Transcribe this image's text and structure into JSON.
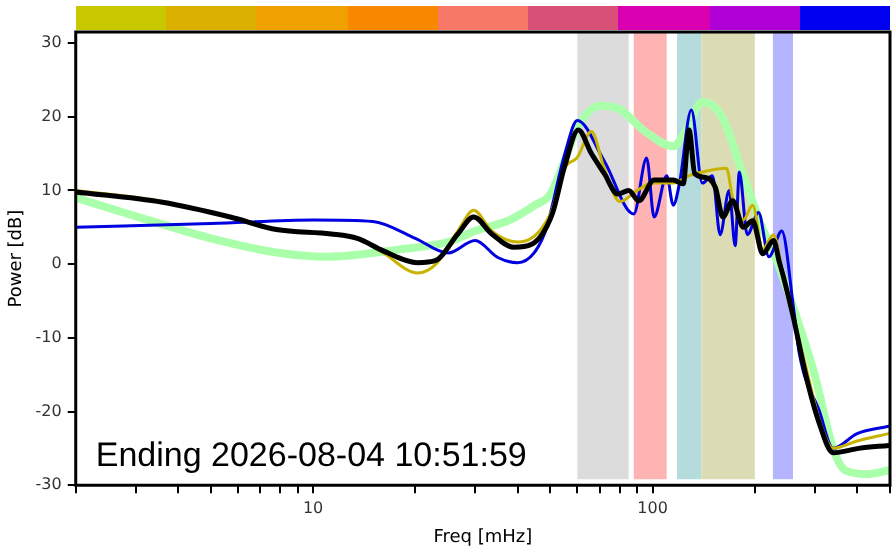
{
  "chart_data": {
    "type": "line",
    "xlabel": "Freq [mHz]",
    "ylabel": "Power [dB]",
    "log": "x",
    "xlim": [
      2,
      500
    ],
    "ylim": [
      -30,
      31.5
    ],
    "xticks": [
      {
        "value": 2,
        "label": null
      },
      {
        "value": 3,
        "label": null
      },
      {
        "value": 4,
        "label": null
      },
      {
        "value": 5,
        "label": null
      },
      {
        "value": 6,
        "label": null
      },
      {
        "value": 7,
        "label": null
      },
      {
        "value": 8,
        "label": null
      },
      {
        "value": 9,
        "label": null
      },
      10,
      {
        "value": 20,
        "label": null
      },
      {
        "value": 30,
        "label": null
      },
      {
        "value": 40,
        "label": null
      },
      {
        "value": 50,
        "label": null
      },
      {
        "value": 60,
        "label": null
      },
      {
        "value": 70,
        "label": null
      },
      {
        "value": 80,
        "label": null
      },
      {
        "value": 90,
        "label": null
      },
      100,
      {
        "value": 200,
        "label": null
      },
      {
        "value": 300,
        "label": null
      },
      {
        "value": 400,
        "label": null
      },
      {
        "value": 500,
        "label": null
      }
    ],
    "yticks": [
      -30,
      -20,
      -10,
      0,
      10,
      20,
      30
    ],
    "grid": false,
    "legend": false,
    "bands": [
      {
        "axis": "x",
        "from": 60,
        "to": 85,
        "color": "#dcdcdc"
      },
      {
        "axis": "x",
        "from": 88,
        "to": 110,
        "color": "#ffb4b4"
      },
      {
        "axis": "x",
        "from": 118,
        "to": 139,
        "color": "#b4dcdc"
      },
      {
        "axis": "x",
        "from": 139,
        "to": 200,
        "color": "#dcdcb4"
      },
      {
        "axis": "x",
        "from": 226,
        "to": 259,
        "color": "#b4b4ff"
      }
    ],
    "annotations": [
      "Ending 2026-08-04 10:51:59"
    ],
    "series": [
      {
        "color": "#aaffaa",
        "x": [
          2,
          3,
          5,
          8,
          11,
          18,
          25,
          30,
          38,
          45,
          50,
          55,
          60,
          70,
          80,
          95,
          115,
          125,
          140,
          160,
          185,
          210,
          230,
          260,
          300,
          340,
          370,
          430,
          495
        ],
        "values": [
          9,
          6.5,
          3.5,
          1.5,
          1,
          2,
          3,
          4.5,
          6,
          8,
          9.5,
          14,
          18.5,
          21.5,
          21,
          18,
          16,
          18,
          22,
          20,
          12,
          5,
          1,
          -6,
          -15,
          -25,
          -28,
          -28.5,
          -28
        ]
      },
      {
        "color": "#0000e0",
        "x": [
          2,
          5,
          10,
          15,
          20,
          25,
          30,
          35,
          40,
          48,
          55,
          60,
          72,
          88,
          96,
          101,
          110,
          115,
          120,
          130,
          140,
          150,
          158,
          168,
          175,
          180,
          190,
          205,
          220,
          240,
          260,
          270,
          310,
          340,
          400,
          495
        ],
        "values": [
          5,
          5.5,
          6,
          5.8,
          3.5,
          1.5,
          3.2,
          0.9,
          0.2,
          4.1,
          14.8,
          19.5,
          14,
          6.8,
          14.4,
          6.4,
          12,
          8,
          11,
          20.9,
          11,
          12,
          4,
          10,
          2.5,
          12.5,
          4,
          7,
          1,
          4.5,
          -6,
          -12,
          -20,
          -25,
          -23,
          -22
        ]
      },
      {
        "color": "#c8b400",
        "x": [
          2,
          3.6,
          5.7,
          7.8,
          11.3,
          13.5,
          16.1,
          20.3,
          23,
          26.7,
          29.7,
          33.6,
          40,
          50,
          55,
          60,
          66,
          72,
          80,
          90,
          100,
          115,
          128,
          140,
          165,
          172,
          185,
          197,
          211,
          227,
          243,
          259,
          283,
          309,
          340,
          400,
          495
        ],
        "values": [
          10,
          8.5,
          6.4,
          4.7,
          4.1,
          3.5,
          1.5,
          -1.2,
          0,
          4.5,
          7.3,
          4.5,
          3,
          6.8,
          13,
          14.5,
          18,
          13,
          8.5,
          10,
          11,
          11,
          12,
          12.5,
          13,
          9,
          6,
          8,
          2,
          4,
          -2,
          -7,
          -14,
          -21,
          -25,
          -24,
          -23
        ]
      },
      {
        "color": "#000000",
        "x": [
          2,
          3.6,
          5.7,
          7.8,
          11.3,
          13.5,
          16.1,
          20.3,
          23,
          26.7,
          29.7,
          33.6,
          39,
          44,
          50.6,
          55,
          60.4,
          66,
          72,
          79,
          85,
          91,
          101,
          115,
          123,
          128,
          133,
          142,
          153,
          161,
          172,
          185,
          197,
          211,
          227,
          236,
          243,
          259,
          283,
          309,
          340,
          405,
          495
        ],
        "values": [
          9.8,
          8.4,
          6.4,
          4.7,
          4.1,
          3.5,
          1.8,
          0.2,
          0.5,
          4.1,
          6.4,
          4.1,
          2.3,
          2.7,
          6.8,
          13.2,
          18.2,
          15,
          12.3,
          9.5,
          10,
          8.6,
          11.4,
          11.4,
          10.9,
          18.2,
          12.3,
          11.8,
          10.4,
          6.4,
          8.6,
          5,
          5.9,
          1.4,
          3.2,
          0.3,
          -1.8,
          -7,
          -15.2,
          -21.5,
          -25.6,
          -25,
          -24.6
        ]
      }
    ]
  }
}
